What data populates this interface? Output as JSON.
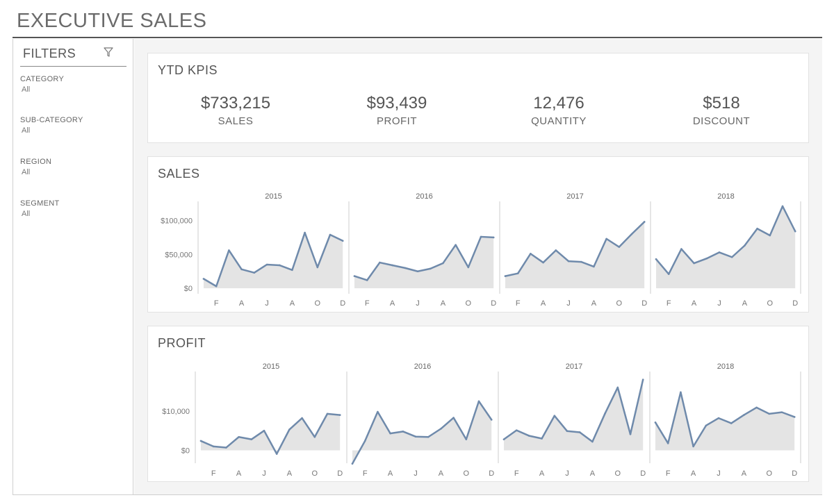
{
  "page_title": "EXECUTIVE SALES",
  "sidebar": {
    "title": "FILTERS",
    "icon": "filter-icon",
    "filters": [
      {
        "label": "CATEGORY",
        "value": "All"
      },
      {
        "label": "SUB-CATEGORY",
        "value": "All"
      },
      {
        "label": "REGION",
        "value": "All"
      },
      {
        "label": "SEGMENT",
        "value": "All"
      }
    ]
  },
  "kpis": {
    "title": "YTD KPIS",
    "items": [
      {
        "value": "$733,215",
        "label": "SALES"
      },
      {
        "value": "$93,439",
        "label": "PROFIT"
      },
      {
        "value": "12,476",
        "label": "QUANTITY"
      },
      {
        "value": "$518",
        "label": "DISCOUNT"
      }
    ]
  },
  "colors": {
    "line": "#6f8aab",
    "area": "#e4e4e4",
    "axis": "#cccccc"
  },
  "chart_data": [
    {
      "type": "area",
      "title": "SALES",
      "years": [
        "2015",
        "2016",
        "2017",
        "2018"
      ],
      "x_tick_labels": [
        "F",
        "A",
        "J",
        "A",
        "O",
        "D"
      ],
      "y_ticks": [
        {
          "value": 0,
          "label": "$0"
        },
        {
          "value": 50000,
          "label": "$50,000"
        },
        {
          "value": 100000,
          "label": "$100,000"
        }
      ],
      "ylim": [
        -8000,
        122000
      ],
      "series": [
        {
          "year": "2015",
          "values": [
            14000,
            3000,
            56000,
            28000,
            23000,
            35000,
            34000,
            27000,
            82000,
            31000,
            79000,
            70000
          ]
        },
        {
          "year": "2016",
          "values": [
            18000,
            12000,
            38000,
            34000,
            30000,
            25000,
            29000,
            37000,
            64000,
            31000,
            76000,
            75000
          ]
        },
        {
          "year": "2017",
          "values": [
            18000,
            22000,
            51000,
            38000,
            56000,
            40000,
            39000,
            32000,
            73000,
            61000,
            80000,
            98000
          ]
        },
        {
          "year": "2018",
          "values": [
            43000,
            21000,
            58000,
            37000,
            44000,
            53000,
            46000,
            63000,
            88000,
            78000,
            121000,
            84000
          ]
        }
      ]
    },
    {
      "type": "area",
      "title": "PROFIT",
      "years": [
        "2015",
        "2016",
        "2017",
        "2018"
      ],
      "x_tick_labels": [
        "F",
        "A",
        "J",
        "A",
        "O",
        "D"
      ],
      "y_ticks": [
        {
          "value": 0,
          "label": "$0"
        },
        {
          "value": 10000,
          "label": "$10,000"
        }
      ],
      "ylim": [
        -3800,
        19000
      ],
      "series": [
        {
          "year": "2015",
          "values": [
            2400,
            1000,
            700,
            3400,
            2800,
            5000,
            -900,
            5300,
            8200,
            3400,
            9300,
            9000
          ]
        },
        {
          "year": "2016",
          "values": [
            -3400,
            2400,
            9800,
            4300,
            4800,
            3500,
            3400,
            5500,
            8300,
            2800,
            12500,
            7800
          ]
        },
        {
          "year": "2017",
          "values": [
            2800,
            5100,
            3700,
            3000,
            8800,
            4900,
            4600,
            2200,
            9400,
            16000,
            4100,
            18000
          ]
        },
        {
          "year": "2018",
          "values": [
            7100,
            1800,
            14800,
            1000,
            6300,
            8200,
            6900,
            9000,
            10900,
            9300,
            9700,
            8500
          ]
        }
      ]
    }
  ]
}
